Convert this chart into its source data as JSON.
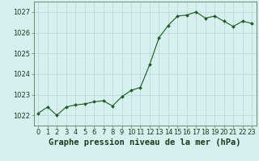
{
  "hours": [
    0,
    1,
    2,
    3,
    4,
    5,
    6,
    7,
    8,
    9,
    10,
    11,
    12,
    13,
    14,
    15,
    16,
    17,
    18,
    19,
    20,
    21,
    22,
    23
  ],
  "pressure": [
    1022.1,
    1022.4,
    1022.0,
    1022.4,
    1022.5,
    1022.55,
    1022.65,
    1022.7,
    1022.45,
    1022.9,
    1023.2,
    1023.35,
    1024.45,
    1025.75,
    1026.35,
    1026.8,
    1026.85,
    1027.0,
    1026.7,
    1026.8,
    1026.55,
    1026.3,
    1026.55,
    1026.45
  ],
  "line_color": "#1a5c1a",
  "marker_color": "#1a5c1a",
  "bg_color": "#d6f0f0",
  "grid_color": "#b8d4d4",
  "xlabel": "Graphe pression niveau de la mer (hPa)",
  "xlabel_fontsize": 7.5,
  "tick_fontsize": 6.0,
  "ylim": [
    1021.5,
    1027.5
  ],
  "yticks": [
    1022,
    1023,
    1024,
    1025,
    1026,
    1027
  ]
}
